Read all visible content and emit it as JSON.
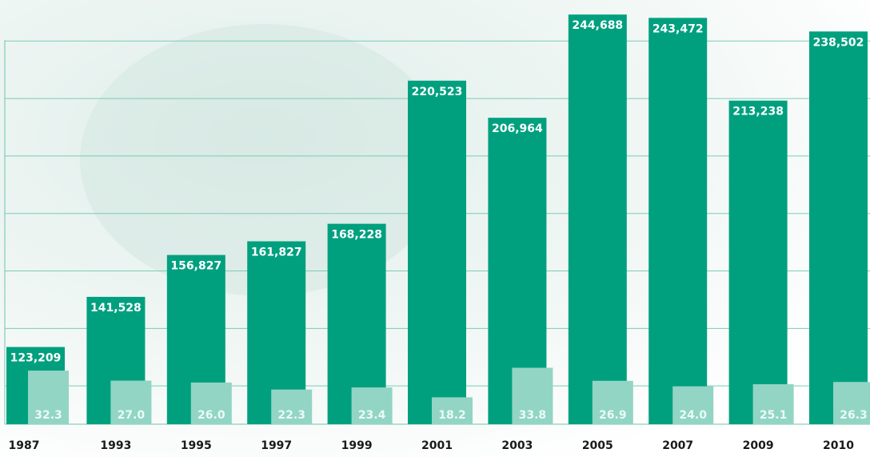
{
  "chart_data": {
    "type": "bar",
    "categories": [
      "1987",
      "1993",
      "1995",
      "1997",
      "1999",
      "2001",
      "2003",
      "2005",
      "2007",
      "2009",
      "2010"
    ],
    "series": [
      {
        "color": "#00a07f",
        "values": [
          123209,
          141528,
          156827,
          161827,
          168228,
          220523,
          206964,
          244688,
          243472,
          213238,
          238502
        ],
        "value_labels": [
          "123,209",
          "141,528",
          "156,827",
          "161,827",
          "168,228",
          "220,523",
          "206,964",
          "244,688",
          "243,472",
          "213,238",
          "238,502"
        ]
      },
      {
        "color": "#92d5c4",
        "axis": "y2",
        "values": [
          32.3,
          27.0,
          26.0,
          22.3,
          23.4,
          18.2,
          33.8,
          26.9,
          24.0,
          25.1,
          26.3
        ],
        "value_labels": [
          "32.3",
          "27.0",
          "26.0",
          "22.3",
          "23.4",
          "18.2",
          "33.8",
          "26.9",
          "24.0",
          "25.1",
          "26.3"
        ]
      }
    ],
    "ylim": [
      95000,
      250000
    ],
    "yticks": [
      109000,
      130000,
      151000,
      172000,
      193000,
      214000,
      235000
    ],
    "y2lim": [
      4,
      228
    ],
    "grid": true
  }
}
